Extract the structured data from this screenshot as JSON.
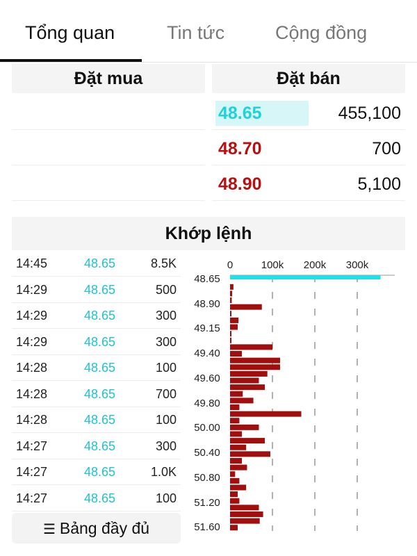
{
  "tabs": [
    {
      "label": "Tổng quan",
      "active": true
    },
    {
      "label": "Tin tức",
      "active": false
    },
    {
      "label": "Cộng đồng",
      "active": false
    }
  ],
  "order_book": {
    "buy_header": "Đặt mua",
    "sell_header": "Đặt bán",
    "asks": [
      {
        "price": "48.65",
        "volume": "455,100",
        "color": "#1fd2d8",
        "highlight": true
      },
      {
        "price": "48.70",
        "volume": "700",
        "color": "#b81010",
        "highlight": false
      },
      {
        "price": "48.90",
        "volume": "5,100",
        "color": "#b81010",
        "highlight": false
      }
    ]
  },
  "matching": {
    "title": "Khớp lệnh",
    "trades": [
      {
        "time": "14:45",
        "price": "48.65",
        "volume": "8.5K"
      },
      {
        "time": "14:29",
        "price": "48.65",
        "volume": "500"
      },
      {
        "time": "14:29",
        "price": "48.65",
        "volume": "300"
      },
      {
        "time": "14:29",
        "price": "48.65",
        "volume": "300"
      },
      {
        "time": "14:28",
        "price": "48.65",
        "volume": "100"
      },
      {
        "time": "14:28",
        "price": "48.65",
        "volume": "700"
      },
      {
        "time": "14:28",
        "price": "48.65",
        "volume": "100"
      },
      {
        "time": "14:27",
        "price": "48.65",
        "volume": "300"
      },
      {
        "time": "14:27",
        "price": "48.65",
        "volume": "1.0K"
      },
      {
        "time": "14:27",
        "price": "48.65",
        "volume": "100"
      }
    ],
    "full_table_label": "Bảng đầy đủ",
    "full_table_icon": "list-icon"
  },
  "chart_data": {
    "type": "bar",
    "orientation": "horizontal",
    "x_ticks": [
      "0",
      "100k",
      "200k",
      "300k"
    ],
    "xlim": [
      0,
      380000
    ],
    "y_tick_labels": [
      "48.65",
      "48.90",
      "49.15",
      "49.40",
      "49.60",
      "49.80",
      "50.00",
      "50.40",
      "50.80",
      "51.20",
      "51.60"
    ],
    "highlight_color": "#22e0e8",
    "bar_color": "#a00e0e",
    "highlight_value": 355000,
    "bars": [
      8000,
      5000,
      4000,
      75000,
      2000,
      20000,
      18000,
      2000,
      3000,
      100000,
      28000,
      118000,
      118000,
      88000,
      68000,
      82000,
      30000,
      55000,
      22000,
      168000,
      22000,
      68000,
      28000,
      82000,
      38000,
      95000,
      28000,
      40000,
      12000,
      22000,
      38000,
      18000,
      22000,
      68000,
      78000,
      70000,
      18000
    ]
  }
}
